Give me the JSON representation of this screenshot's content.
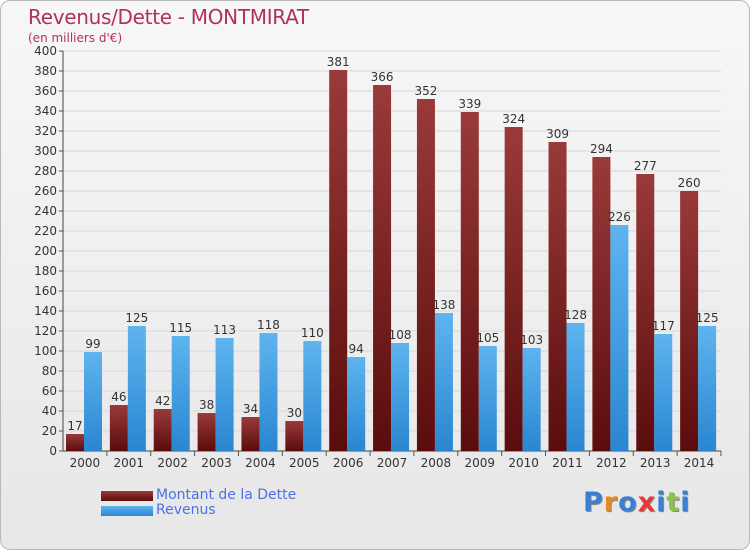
{
  "title": "Revenus/Dette - MONTMIRAT",
  "subtitle": "(en milliers d'€)",
  "legend": [
    {
      "label": "Montant de la Dette",
      "color": "#7a1e1e"
    },
    {
      "label": "Revenus",
      "color": "#3d9be5"
    }
  ],
  "logo": {
    "text": "Proxiti",
    "colors": [
      "#3a7fd0",
      "#e58a1f",
      "#3a7fd0",
      "#e53935",
      "#3a7fd0",
      "#8bc34a",
      "#3a7fd0"
    ]
  },
  "colors": {
    "debt_top": "#9a3a3a",
    "debt_bottom": "#5a0c0c",
    "rev_top": "#5eb4ef",
    "rev_bottom": "#2a86d0",
    "axis_text": "#333333",
    "grid": "#d8d8d8"
  },
  "chart_data": {
    "type": "bar",
    "title": "Revenus/Dette - MONTMIRAT",
    "subtitle": "(en milliers d'€)",
    "categories": [
      "2000",
      "2001",
      "2002",
      "2003",
      "2004",
      "2005",
      "2006",
      "2007",
      "2008",
      "2009",
      "2010",
      "2011",
      "2012",
      "2013",
      "2014"
    ],
    "series": [
      {
        "name": "Montant de la Dette",
        "values": [
          17,
          46,
          42,
          38,
          34,
          30,
          381,
          366,
          352,
          339,
          324,
          309,
          294,
          277,
          260
        ]
      },
      {
        "name": "Revenus",
        "values": [
          99,
          125,
          115,
          113,
          118,
          110,
          94,
          108,
          138,
          105,
          103,
          128,
          226,
          117,
          125
        ]
      }
    ],
    "ylim": [
      0,
      400
    ],
    "ytick_step": 20,
    "grid": true,
    "legend_position": "bottom-left"
  }
}
